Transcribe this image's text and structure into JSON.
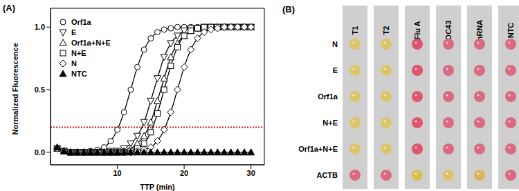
{
  "chart_data": [
    {
      "type": "line",
      "panel_label": "(A)",
      "x_label": "TTP (min)",
      "y_label": "Normalized Fluorescence",
      "xlim": [
        0,
        32
      ],
      "xticks": [
        10,
        20,
        30
      ],
      "ylim": [
        -0.1,
        1.15
      ],
      "yticks": [
        {
          "value": 0,
          "label": "0.0"
        },
        {
          "value": 0.5,
          "label": "0.5"
        },
        {
          "value": 1,
          "label": "1.0"
        }
      ],
      "grid": false,
      "legend": "upper left",
      "threshold": {
        "value": 0.2,
        "color": "#d01010",
        "line_style": "dotted"
      },
      "x": [
        1,
        2,
        3,
        4,
        5,
        6,
        7,
        8,
        9,
        10,
        11,
        12,
        13,
        14,
        15,
        16,
        17,
        18,
        19,
        20,
        21,
        22,
        23,
        24,
        25,
        26,
        27,
        28,
        29,
        30
      ],
      "series": [
        {
          "name": "Orf1a",
          "color": "#000000",
          "marker": "circle",
          "values": [
            0.03,
            0.01,
            0,
            0,
            0,
            0.01,
            0.02,
            0.04,
            0.09,
            0.18,
            0.32,
            0.5,
            0.68,
            0.82,
            0.91,
            0.96,
            0.98,
            0.99,
            1,
            1,
            1,
            1,
            1,
            1,
            1,
            1,
            1,
            1,
            1,
            1
          ]
        },
        {
          "name": "E",
          "color": "#000000",
          "marker": "triangle-down",
          "values": [
            0.03,
            0.01,
            0,
            0,
            0,
            0,
            0,
            0,
            0.01,
            0.01,
            0.03,
            0.07,
            0.13,
            0.24,
            0.41,
            0.59,
            0.76,
            0.87,
            0.93,
            0.97,
            0.99,
            0.99,
            1,
            1,
            1,
            1,
            1,
            1,
            1,
            1
          ]
        },
        {
          "name": "Orf1a+N+E",
          "color": "#000000",
          "marker": "triangle-up",
          "values": [
            0.03,
            0.01,
            0,
            0,
            0,
            0,
            0,
            0,
            0,
            0,
            0.01,
            0.03,
            0.07,
            0.13,
            0.24,
            0.41,
            0.59,
            0.76,
            0.87,
            0.93,
            0.97,
            0.99,
            0.99,
            1,
            1,
            1,
            1,
            1,
            1,
            1
          ]
        },
        {
          "name": "N+E",
          "color": "#000000",
          "marker": "square",
          "values": [
            0.03,
            0.01,
            0,
            0,
            0,
            0,
            0,
            0,
            0,
            0,
            0,
            0.01,
            0.03,
            0.07,
            0.16,
            0.31,
            0.5,
            0.69,
            0.84,
            0.93,
            0.97,
            0.99,
            1,
            1,
            1,
            1,
            1,
            1,
            1,
            1
          ]
        },
        {
          "name": "N",
          "color": "#000000",
          "marker": "diamond",
          "values": [
            0.03,
            0.01,
            0,
            0,
            0,
            0,
            0,
            0,
            0,
            0,
            0,
            0,
            0.01,
            0.02,
            0.04,
            0.09,
            0.18,
            0.32,
            0.5,
            0.68,
            0.82,
            0.91,
            0.96,
            0.98,
            0.99,
            1,
            1,
            1,
            1,
            1
          ]
        },
        {
          "name": "NTC",
          "color": "#000000",
          "marker": "triangle-up-filled",
          "values": [
            0.04,
            0.01,
            0,
            0,
            0,
            0,
            0,
            0,
            0,
            0,
            0,
            0,
            0,
            0,
            0,
            0,
            0,
            0,
            0,
            0,
            0,
            0,
            0,
            0,
            0,
            0,
            0,
            0,
            0,
            0
          ]
        }
      ]
    },
    {
      "type": "dot_grid",
      "panel_label": "(B)",
      "columns": [
        "T1",
        "T2",
        "Flu A",
        "OC43",
        "hRNA",
        "NTC"
      ],
      "rows": [
        "N",
        "E",
        "Orf1a",
        "N+E",
        "Orf1a+N+E",
        "ACTB"
      ],
      "cells": [
        [
          "#dcc46a",
          "#dcc46a",
          "#de5570",
          "#d96a82",
          "#d96a82",
          "#d96a82"
        ],
        [
          "#dcc46a",
          "#dcc46a",
          "#de5570",
          "#d96a82",
          "#d96a82",
          "#d96a82"
        ],
        [
          "#dcc46a",
          "#dcc46a",
          "#de5570",
          "#d96a82",
          "#d96a82",
          "#d96a82"
        ],
        [
          "#dcc46a",
          "#dcc46a",
          "#de5570",
          "#d96a82",
          "#d96a82",
          "#d96a82"
        ],
        [
          "#dcc46a",
          "#dcc46a",
          "#de5570",
          "#d96a82",
          "#d96a82",
          "#d96a82"
        ],
        [
          "#d96a82",
          "#d96a82",
          "#d6c250",
          "#dcc46a",
          "#dcb460",
          "#d96a82"
        ]
      ]
    }
  ]
}
